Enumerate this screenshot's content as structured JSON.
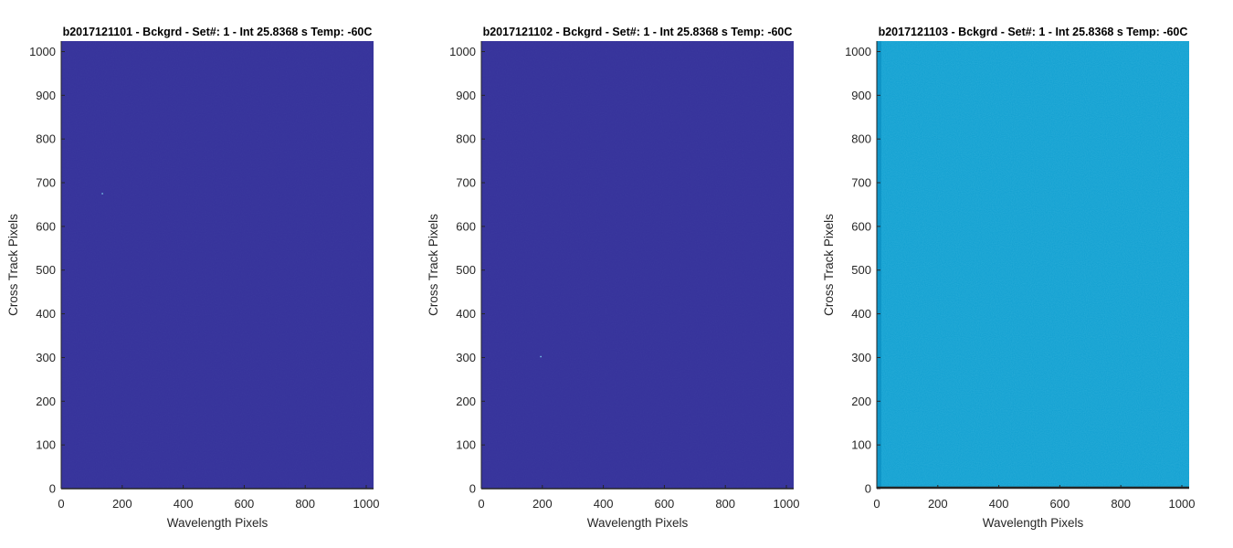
{
  "chart_data": [
    {
      "type": "heatmap",
      "title": "b2017121101 - Bckgrd - Set#: 1 - Int 25.8368 s Temp: -60C",
      "xlabel": "Wavelength Pixels",
      "ylabel": "Cross Track Pixels",
      "xlim": [
        0,
        1024
      ],
      "ylim": [
        0,
        1024
      ],
      "xticks": [
        0,
        200,
        400,
        600,
        800,
        1000
      ],
      "yticks": [
        0,
        100,
        200,
        300,
        400,
        500,
        600,
        700,
        800,
        900,
        1000
      ],
      "fill_color": "#35329a",
      "hot_pixels": [
        {
          "x": 135,
          "y": 675
        }
      ]
    },
    {
      "type": "heatmap",
      "title": "b2017121102 - Bckgrd - Set#: 1 - Int 25.8368 s Temp: -60C",
      "xlabel": "Wavelength Pixels",
      "ylabel": "Cross Track Pixels",
      "xlim": [
        0,
        1024
      ],
      "ylim": [
        0,
        1024
      ],
      "xticks": [
        0,
        200,
        400,
        600,
        800,
        1000
      ],
      "yticks": [
        0,
        100,
        200,
        300,
        400,
        500,
        600,
        700,
        800,
        900,
        1000
      ],
      "fill_color": "#35329a",
      "hot_pixels": [
        {
          "x": 195,
          "y": 302
        }
      ]
    },
    {
      "type": "heatmap",
      "title": "b2017121103 - Bckgrd - Set#: 1 - Int 25.8368 s Temp: -60C",
      "xlabel": "Wavelength Pixels",
      "ylabel": "Cross Track Pixels",
      "xlim": [
        0,
        1024
      ],
      "ylim": [
        0,
        1024
      ],
      "xticks": [
        0,
        200,
        400,
        600,
        800,
        1000
      ],
      "yticks": [
        0,
        100,
        200,
        300,
        400,
        500,
        600,
        700,
        800,
        900,
        1000
      ],
      "fill_color": "#0f9fd0",
      "hot_pixels": []
    }
  ]
}
